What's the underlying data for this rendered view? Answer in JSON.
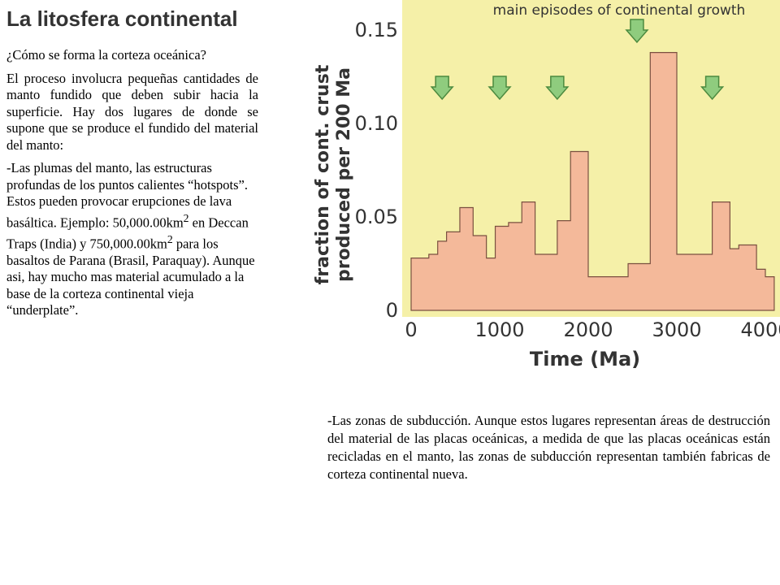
{
  "slide": {
    "title": "La litosfera continental",
    "left": {
      "question": "¿Cómo se forma la corteza oceánica?",
      "para1": "El proceso involucra pequeñas cantidades de manto fundido que deben subir hacia la superficie. Hay dos lugares de donde se supone que se produce el fundido del material del manto:",
      "para2_a": "-Las plumas del manto, las estructuras profundas de los puntos calientes “hotspots”. Estos pueden provocar erupciones de lava basáltica. Ejemplo: 50,000.00km",
      "sup1": "2",
      "para2_b": " en Deccan Traps (India) y 750,000.00km",
      "sup2": "2",
      "para2_c": " para los basaltos de Parana (Brasil, Paraquay). Aunque asi, hay mucho mas material acumulado a la base de la corteza continental vieja “underplate”."
    },
    "right": {
      "para": "-Las zonas de subducción. Aunque estos lugares representan áreas de destrucción del material de las placas oceánicas, a medida de que las placas oceánicas están recicladas en el manto, las zonas de subducción representan también fabricas de corteza continental nueva."
    }
  },
  "chart_data": {
    "type": "area",
    "title": "main episodes of continental growth",
    "xlabel": "Time (Ma)",
    "ylabel_line1": "fraction of cont. crust",
    "ylabel_line2": "produced per 200 Ma",
    "xlim": [
      0,
      4000
    ],
    "ylim": [
      0,
      0.15
    ],
    "x_ticks": [
      "0",
      "1000",
      "2000",
      "3000",
      "4000"
    ],
    "y_ticks": [
      "0",
      "0.05",
      "0.10",
      "0.15"
    ],
    "y_tick_values": [
      0,
      0.05,
      0.1,
      0.15
    ],
    "x_tick_values": [
      0,
      1000,
      2000,
      3000,
      4000
    ],
    "x": [
      0,
      200,
      300,
      400,
      550,
      700,
      850,
      950,
      1100,
      1250,
      1400,
      1650,
      1800,
      2000,
      2200,
      2450,
      2700,
      3000,
      3250,
      3400,
      3600,
      3700,
      3900,
      4000,
      4100
    ],
    "y": [
      0.028,
      0.03,
      0.037,
      0.042,
      0.055,
      0.04,
      0.028,
      0.045,
      0.047,
      0.058,
      0.03,
      0.048,
      0.085,
      0.018,
      0.018,
      0.025,
      0.138,
      0.03,
      0.03,
      0.058,
      0.033,
      0.035,
      0.022,
      0.018,
      0.018
    ],
    "arrows_at_x": [
      350,
      1000,
      1650,
      2550,
      3400
    ],
    "colors": {
      "background": "#f5f0a8",
      "area_fill": "#f4b99a",
      "area_stroke": "#7a5040",
      "arrow_fill": "#8fcc7e",
      "arrow_stroke": "#4c8a3f",
      "axis_text": "#333333"
    }
  }
}
